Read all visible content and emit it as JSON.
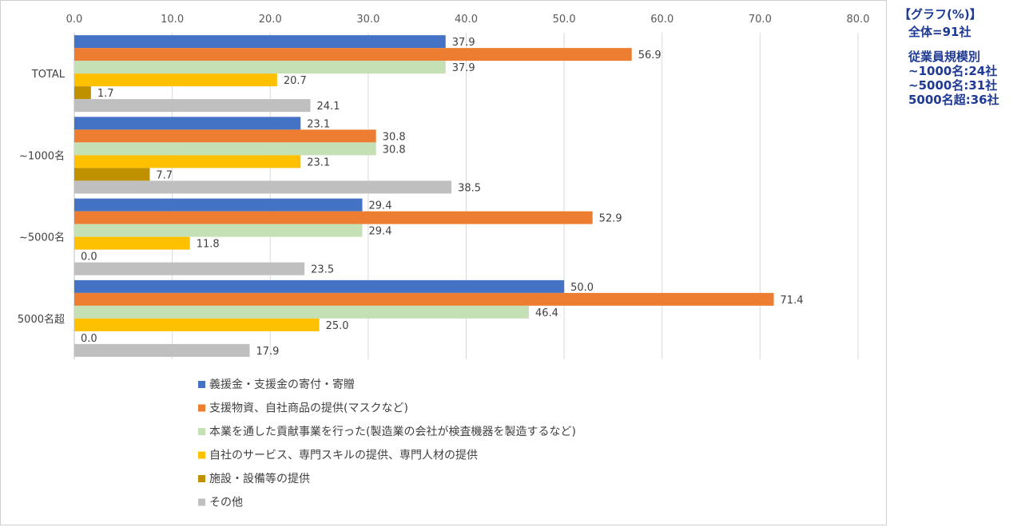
{
  "side_note": {
    "title": "【グラフ(%)】",
    "total": "全体=91社",
    "breakdown_title": "従業員規模別",
    "breakdown": [
      "~1000名:24社",
      "~5000名:31社",
      "5000名超:36社"
    ]
  },
  "chart_data": {
    "type": "bar",
    "orientation": "horizontal",
    "xlim": [
      0,
      80
    ],
    "x_ticks": [
      "0.0",
      "10.0",
      "20.0",
      "30.0",
      "40.0",
      "50.0",
      "60.0",
      "70.0",
      "80.0"
    ],
    "x_tick_values": [
      0,
      10,
      20,
      30,
      40,
      50,
      60,
      70,
      80
    ],
    "grid": true,
    "legend_position": "bottom",
    "categories": [
      "TOTAL",
      "~1000名",
      "~5000名",
      "5000名超"
    ],
    "series": [
      {
        "name": "義援金・支援金の寄付・寄贈",
        "color": "#4472c4",
        "values": [
          37.9,
          23.1,
          29.4,
          50.0
        ]
      },
      {
        "name": "支援物資、自社商品の提供(マスクなど)",
        "color": "#ed7d31",
        "values": [
          56.9,
          30.8,
          52.9,
          71.4
        ]
      },
      {
        "name": "本業を通した貢献事業を行った(製造業の会社が検査機器を製造するなど)",
        "color": "#c5e0b4",
        "values": [
          37.9,
          30.8,
          29.4,
          46.4
        ]
      },
      {
        "name": "自社のサービス、専門スキルの提供、専門人材の提供",
        "color": "#ffc000",
        "values": [
          20.7,
          23.1,
          11.8,
          25.0
        ]
      },
      {
        "name": "施設・設備等の提供",
        "color": "#bf9000",
        "values": [
          1.7,
          7.7,
          0.0,
          0.0
        ]
      },
      {
        "name": "その他",
        "color": "#bfbfbf",
        "values": [
          24.1,
          38.5,
          23.5,
          17.9
        ]
      }
    ]
  }
}
